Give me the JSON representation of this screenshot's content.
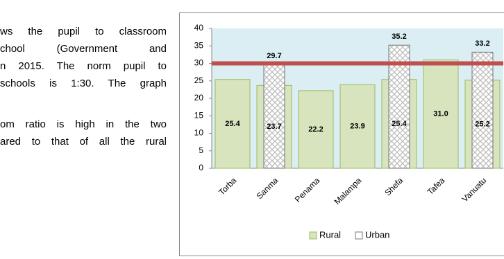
{
  "document": {
    "lines": [
      "ws the pupil to classroom",
      "chool (Government and",
      "n 2015. The norm pupil to",
      "schools is 1:30. The graph",
      "om ratio is high in the two",
      "ared to that of all the rural"
    ]
  },
  "chart_data": {
    "type": "bar",
    "categories": [
      "Torba",
      "Sanma",
      "Penama",
      "Malampa",
      "Shefa",
      "Tafea",
      "Vanuatu"
    ],
    "series": [
      {
        "name": "Rural",
        "color": "#d7e4bd",
        "values": [
          25.4,
          23.7,
          22.2,
          23.9,
          25.4,
          31.0,
          25.2
        ],
        "value_labels": [
          "25.4",
          "23.7",
          "22.2",
          "23.9",
          "25.4",
          "31.0",
          "25.2"
        ]
      },
      {
        "name": "Urban",
        "color": "#ffffff",
        "values": [
          null,
          29.7,
          null,
          null,
          35.2,
          null,
          33.2
        ]
      }
    ],
    "norm_line": 30,
    "norm_color": "#c0504d",
    "ylim": [
      0,
      40
    ],
    "yticks": [
      0,
      5,
      10,
      15,
      20,
      25,
      30,
      35,
      40
    ]
  }
}
